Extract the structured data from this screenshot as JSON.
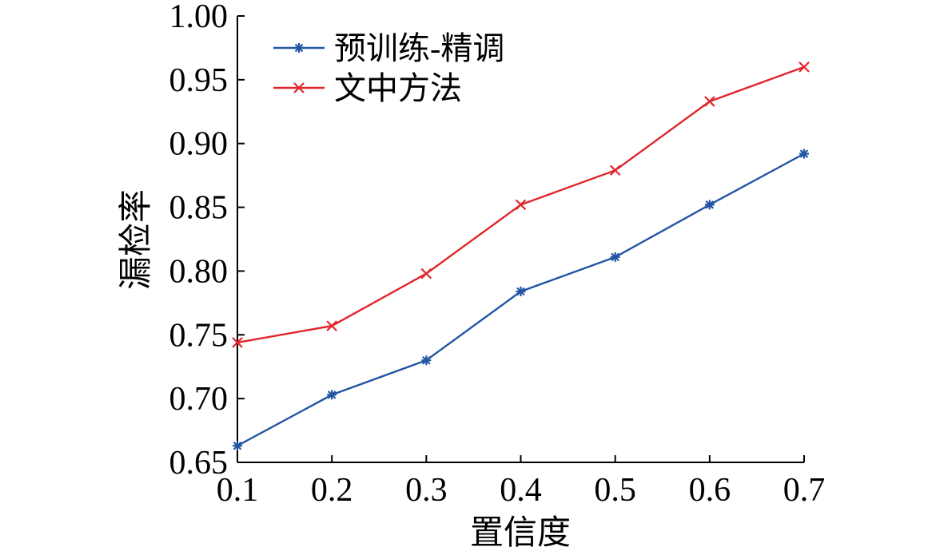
{
  "chart_data": {
    "type": "line",
    "xlabel": "置信度",
    "ylabel": "漏检率",
    "x": [
      0.1,
      0.2,
      0.3,
      0.4,
      0.5,
      0.6,
      0.7
    ],
    "x_tick_labels": [
      "0.1",
      "0.2",
      "0.3",
      "0.4",
      "0.5",
      "0.6",
      "0.7"
    ],
    "y_tick_values": [
      0.65,
      0.7,
      0.75,
      0.8,
      0.85,
      0.9,
      0.95,
      1.0
    ],
    "y_tick_labels": [
      "0.65",
      "0.70",
      "0.75",
      "0.80",
      "0.85",
      "0.90",
      "0.95",
      "1.00"
    ],
    "xlim": [
      0.1,
      0.7
    ],
    "ylim": [
      0.65,
      1.0
    ],
    "grid": false,
    "legend_position": "top-left",
    "series": [
      {
        "name": "预训练-精调",
        "color": "#2255a4",
        "marker": "asterisk",
        "values": [
          0.663,
          0.703,
          0.73,
          0.784,
          0.811,
          0.852,
          0.892
        ]
      },
      {
        "name": "文中方法",
        "color": "#e0262b",
        "marker": "x",
        "values": [
          0.744,
          0.757,
          0.798,
          0.852,
          0.879,
          0.933,
          0.96
        ]
      }
    ]
  }
}
